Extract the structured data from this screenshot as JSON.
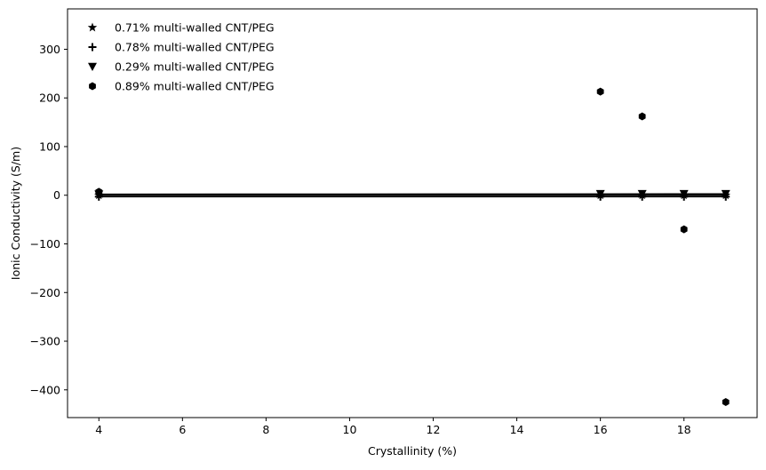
{
  "chart_data": {
    "type": "scatter",
    "title": "",
    "xlabel": "Crystallinity (%)",
    "ylabel": "Ionic Conductivity (S/m)",
    "xlim": [
      3.25,
      19.75
    ],
    "ylim": [
      -457,
      383
    ],
    "xticks": [
      4,
      6,
      8,
      10,
      12,
      14,
      16,
      18
    ],
    "yticks": [
      300,
      200,
      100,
      0,
      -100,
      -200,
      -300,
      -400
    ],
    "grid": false,
    "legend_position": "top-left",
    "series": [
      {
        "name": "0.71% multi-walled CNT/PEG",
        "marker": "star",
        "x": [
          4,
          16,
          17,
          18,
          19
        ],
        "y": [
          0.0,
          0.0,
          0.0,
          0.0,
          0.0
        ],
        "fit": [
          0.2,
          0.2
        ]
      },
      {
        "name": "0.78% multi-walled CNT/PEG",
        "marker": "plus",
        "x": [
          4,
          16,
          17,
          18,
          19
        ],
        "y": [
          -3.0,
          -3.0,
          -3.0,
          -3.0,
          -3.0
        ],
        "fit": [
          -3.0,
          -3.0
        ]
      },
      {
        "name": "0.29% multi-walled CNT/PEG",
        "marker": "triangle-down",
        "x": [
          4,
          16,
          17,
          18,
          19
        ],
        "y": [
          2.0,
          3.0,
          3.0,
          3.0,
          3.0
        ],
        "fit": [
          2.0,
          2.8
        ]
      },
      {
        "name": "0.89% multi-walled CNT/PEG",
        "marker": "hexagon",
        "x": [
          4,
          16,
          17,
          18,
          19
        ],
        "y": [
          7,
          213,
          162,
          -70,
          -425
        ],
        "fit": [
          0.5,
          0.5
        ]
      }
    ]
  }
}
